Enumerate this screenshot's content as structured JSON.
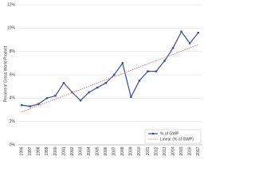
{
  "chart_data": {
    "type": "line",
    "y_label": "Percent of Gross World Product",
    "categories": [
      "1996",
      "1997",
      "1998",
      "1999",
      "2000",
      "2001",
      "2002",
      "2003",
      "2004",
      "2005",
      "2006",
      "2007",
      "2008",
      "2009",
      "2010",
      "2011",
      "2012",
      "2013",
      "2014",
      "2015",
      "2016",
      "2017"
    ],
    "series": [
      {
        "name": "% of GWP",
        "color": "#2f4f9f",
        "values": [
          3.4,
          3.3,
          3.5,
          4.0,
          4.2,
          5.3,
          4.5,
          3.8,
          4.5,
          4.9,
          5.3,
          6.0,
          7.0,
          4.1,
          5.5,
          6.3,
          6.3,
          7.2,
          8.3,
          9.7,
          8.7,
          9.6
        ]
      }
    ],
    "trendline": {
      "type": "linear",
      "name": "Linear (% of GWP)",
      "color": "#e06060"
    },
    "ylim": [
      0,
      12
    ],
    "yticks": [
      {
        "value": 0,
        "label": "0%"
      },
      {
        "value": 2,
        "label": "2%"
      },
      {
        "value": 4,
        "label": "4%"
      },
      {
        "value": 6,
        "label": "6%"
      },
      {
        "value": 8,
        "label": "8%"
      },
      {
        "value": 10,
        "label": "10%"
      },
      {
        "value": 12,
        "label": "12%"
      }
    ],
    "grid": true,
    "legend": "lower right"
  }
}
